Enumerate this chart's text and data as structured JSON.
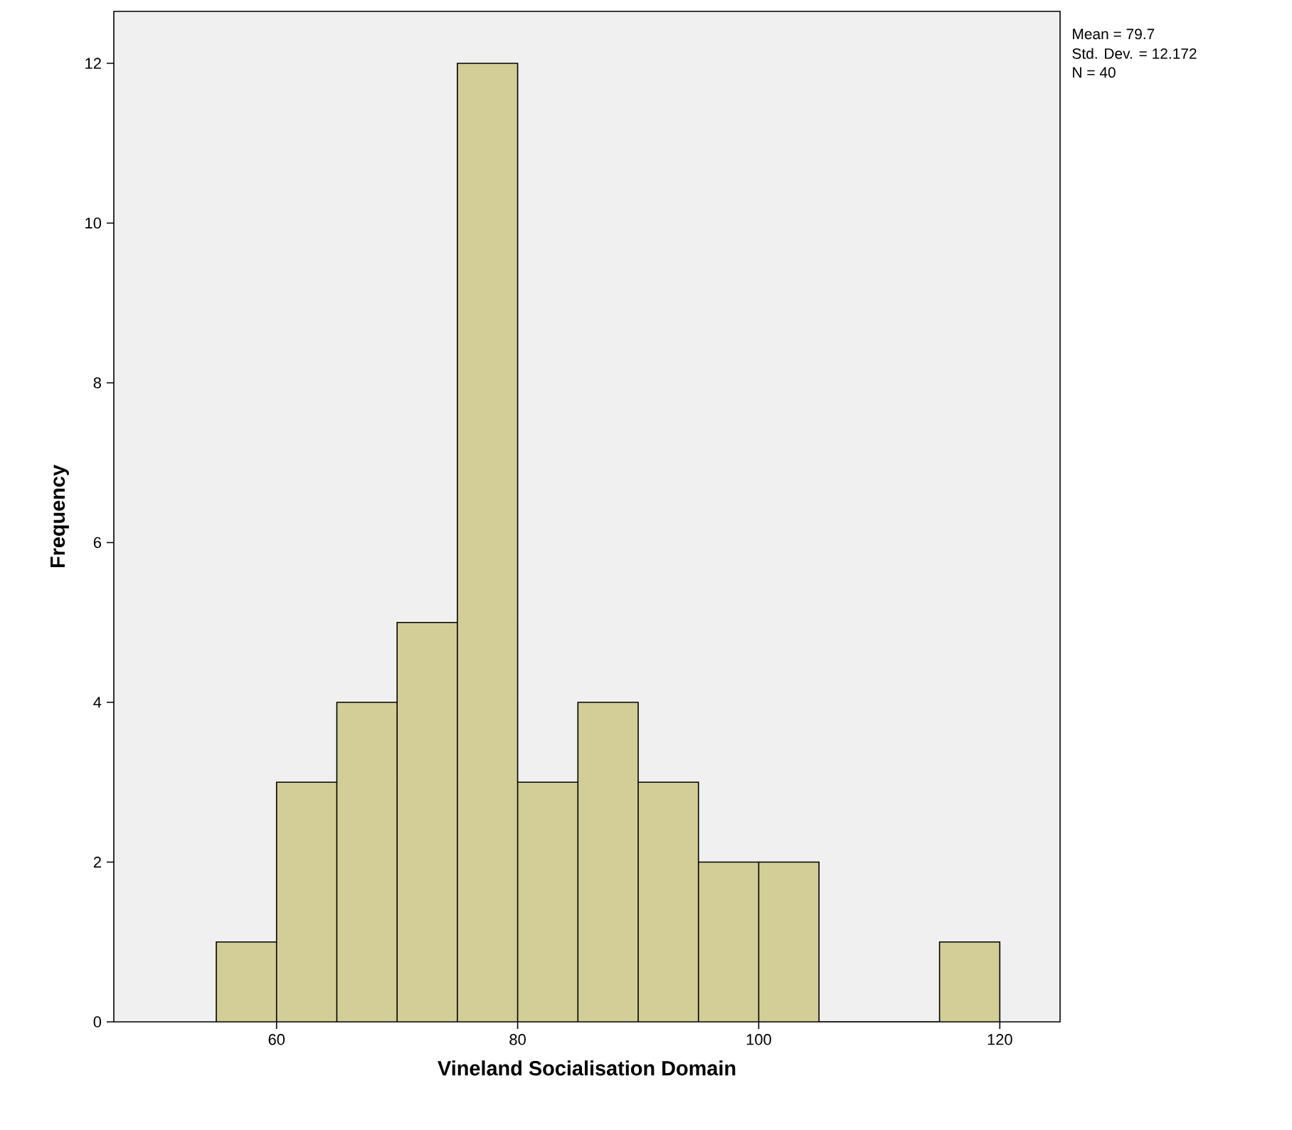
{
  "chart_data": {
    "type": "histogram",
    "xlabel": "Vineland Socialisation Domain",
    "ylabel": "Frequency",
    "bins": [
      55,
      60,
      65,
      70,
      75,
      80,
      85,
      90,
      95,
      100,
      105,
      110,
      115,
      120
    ],
    "values": [
      1,
      3,
      4,
      5,
      12,
      3,
      4,
      3,
      2,
      2,
      0,
      0,
      1
    ],
    "color": "#d3ce97",
    "xlim": [
      46.5,
      125
    ],
    "ylim": [
      0,
      12.65
    ],
    "xticks": [
      60,
      80,
      100,
      120
    ],
    "yticks": [
      0,
      2,
      4,
      6,
      8,
      10,
      12
    ],
    "grid": false,
    "annotations": [
      "Mean = 79.7",
      "Std. Dev. = 12.172",
      "N = 40"
    ]
  }
}
